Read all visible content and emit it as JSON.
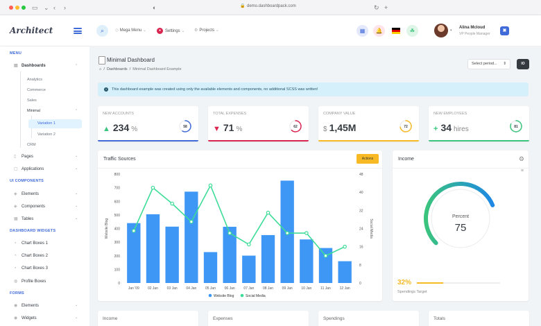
{
  "browser": {
    "url": "demo.dashboardpack.com"
  },
  "header": {
    "logo": "Architect",
    "mega_menu": "Mega Menu",
    "settings": "Settings",
    "projects": "Projects",
    "user_name": "Alina Mcloud",
    "user_role": "VP People Manager"
  },
  "sidebar": {
    "menu_heading": "MENU",
    "dashboards": "Dashboards",
    "analytics": "Analytics",
    "commerce": "Commerce",
    "sales": "Sales",
    "minimal": "Minimal",
    "variation1": "Variation 1",
    "variation2": "Variation 2",
    "crm": "CRM",
    "pages": "Pages",
    "applications": "Applications",
    "ui_heading": "UI COMPONENTS",
    "elements": "Elements",
    "components": "Components",
    "tables": "Tables",
    "widgets_heading": "DASHBOARD WIDGETS",
    "chart_boxes_1": "Chart Boxes 1",
    "chart_boxes_2": "Chart Boxes 2",
    "chart_boxes_3": "Chart Boxes 3",
    "profile_boxes": "Profile Boxes",
    "forms_heading": "FORMS",
    "form_elements": "Elements",
    "form_widgets": "Widgets"
  },
  "page": {
    "title": "Minimal Dashboard",
    "breadcrumb_1": "Dashboards",
    "breadcrumb_2": "Minimal Dashboard Example",
    "period_select": "Select period...",
    "io_button": "IO",
    "alert": "This dashboard example was created using only the available elements and components, no additional SCSS was written!"
  },
  "stats": [
    {
      "label": "NEW ACCOUNTS",
      "value": "234",
      "unit": "%",
      "arrow": "▲",
      "arrow_color": "#3ac47d",
      "ring": "58",
      "ring_pct": 0.58,
      "color": "#3f6ad8"
    },
    {
      "label": "TOTAL EXPENSES",
      "value": "71",
      "unit": "%",
      "arrow": "▼",
      "arrow_color": "#d92550",
      "ring": "62",
      "ring_pct": 0.62,
      "color": "#d92550"
    },
    {
      "label": "COMPANY VALUE",
      "value": "1,45M",
      "unit": "$",
      "arrow": "",
      "arrow_color": "#888",
      "ring": "72",
      "ring_pct": 0.72,
      "color": "#f7b924"
    },
    {
      "label": "NEW EMPLOYEES",
      "value": "34",
      "unit": "hires",
      "arrow": "+",
      "arrow_color": "#3ac47d",
      "ring": "81",
      "ring_pct": 0.81,
      "color": "#3ac47d"
    }
  ],
  "traffic": {
    "title": "Traffic Sources",
    "actions": "Actions",
    "left_axis_label": "Website Blog",
    "right_axis_label": "Social Media"
  },
  "income": {
    "title": "Income",
    "percent_label": "Percent",
    "percent_value": "75",
    "target_pct": "32%",
    "target_label": "Spendings Target",
    "target_fill": 0.32
  },
  "bottom_cards": [
    "Income",
    "Expenses",
    "Spendings",
    "Totals"
  ],
  "colors": {
    "primary": "#3f6ad8",
    "bar": "#3f97f5",
    "line": "#3ddc97",
    "warning": "#f7b924"
  },
  "chart_data": {
    "type": "bar",
    "title": "",
    "categories": [
      "Jan '09",
      "02 Jan",
      "03 Jan",
      "04 Jan",
      "05 Jan",
      "06 Jan",
      "07 Jan",
      "08 Jan",
      "09 Jan",
      "10 Jan",
      "11 Jan",
      "12 Jan"
    ],
    "series": [
      {
        "name": "Website Blog",
        "type": "bar",
        "axis": "left",
        "values": [
          440,
          505,
          414,
          671,
          227,
          413,
          201,
          352,
          752,
          320,
          257,
          160
        ]
      },
      {
        "name": "Social Media",
        "type": "line",
        "axis": "right",
        "values": [
          23,
          42,
          35,
          27,
          43,
          22,
          17,
          31,
          22,
          22,
          12,
          16
        ]
      }
    ],
    "ylim_left": [
      0,
      800
    ],
    "yticks_left": [
      0,
      100,
      200,
      300,
      400,
      500,
      600,
      700,
      800
    ],
    "ylim_right": [
      0,
      48
    ],
    "yticks_right": [
      0,
      8,
      16,
      24,
      32,
      40,
      48
    ],
    "ylabel": "Website Blog",
    "ylabel_right": "Social Media",
    "legend": "bottom"
  }
}
